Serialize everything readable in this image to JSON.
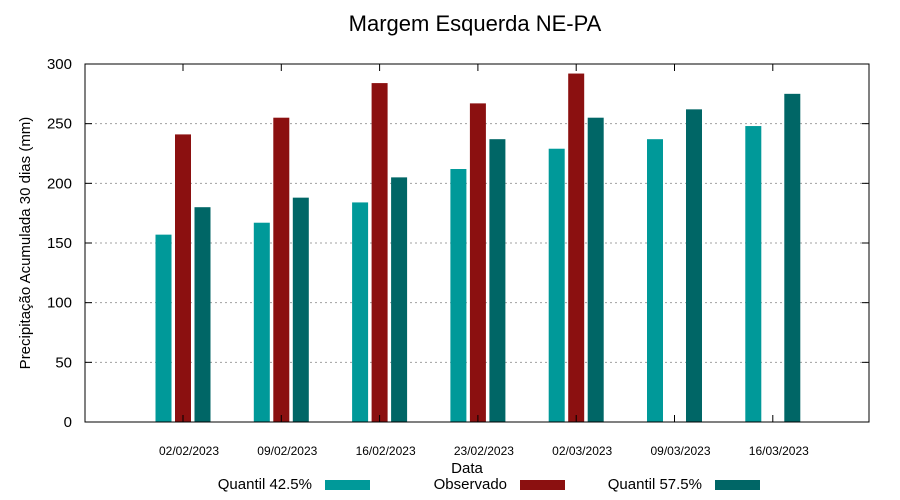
{
  "chart_data": {
    "type": "bar",
    "title": "Margem Esquerda NE-PA",
    "xlabel": "Data",
    "ylabel": "Precipitação Acumulada 30 dias (mm)",
    "ylim": [
      0,
      300
    ],
    "yticks": [
      0,
      50,
      100,
      150,
      200,
      250,
      300
    ],
    "grid": true,
    "legend_position": "bottom",
    "categories": [
      "02/02/2023",
      "09/02/2023",
      "16/02/2023",
      "23/02/2023",
      "02/03/2023",
      "09/03/2023",
      "16/03/2023"
    ],
    "series": [
      {
        "name": "Quantil 42.5%",
        "color": "#009999",
        "values": [
          157,
          167,
          184,
          212,
          229,
          237,
          248
        ]
      },
      {
        "name": "Observado",
        "color": "#8b1010",
        "values": [
          241,
          255,
          284,
          267,
          292,
          null,
          null
        ]
      },
      {
        "name": "Quantil 57.5%",
        "color": "#006666",
        "values": [
          180,
          188,
          205,
          237,
          255,
          262,
          275
        ]
      }
    ]
  }
}
